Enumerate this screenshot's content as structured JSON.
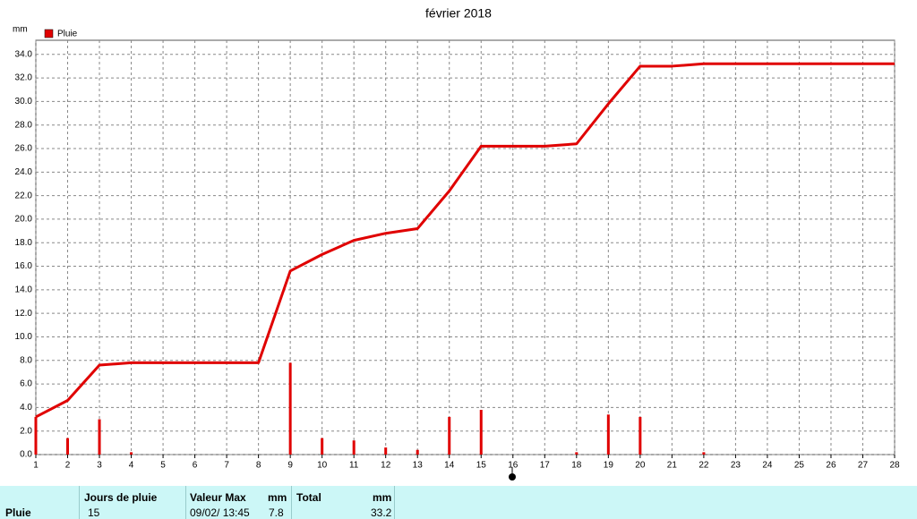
{
  "chart_data": {
    "type": "bar-line",
    "title": "février 2018",
    "y_unit": "mm",
    "x": [
      1,
      2,
      3,
      4,
      5,
      6,
      7,
      8,
      9,
      10,
      11,
      12,
      13,
      14,
      15,
      16,
      17,
      18,
      19,
      20,
      21,
      22,
      23,
      24,
      25,
      26,
      27,
      28
    ],
    "xlim": [
      1,
      28
    ],
    "ylim": [
      0,
      35.2
    ],
    "yticks": [
      {
        "value": 0,
        "label": "0.0"
      },
      {
        "value": 2,
        "label": "2.0"
      },
      {
        "value": 4,
        "label": "4.0"
      },
      {
        "value": 6,
        "label": "6.0"
      },
      {
        "value": 8,
        "label": "8.0"
      },
      {
        "value": 10,
        "label": "10.0"
      },
      {
        "value": 12,
        "label": "12.0"
      },
      {
        "value": 14,
        "label": "14.0"
      },
      {
        "value": 16,
        "label": "16.0"
      },
      {
        "value": 18,
        "label": "18.0"
      },
      {
        "value": 20,
        "label": "20.0"
      },
      {
        "value": 22,
        "label": "22.0"
      },
      {
        "value": 24,
        "label": "24.0"
      },
      {
        "value": 26,
        "label": "26.0"
      },
      {
        "value": 28,
        "label": "28.0"
      },
      {
        "value": 30,
        "label": "30.0"
      },
      {
        "value": 32,
        "label": "32.0"
      },
      {
        "value": 34,
        "label": "34.0"
      }
    ],
    "grid": true,
    "series": [
      {
        "name": "Pluie",
        "type": "bar",
        "color": "#e00000",
        "values": [
          3.2,
          1.4,
          3.0,
          0.2,
          0,
          0,
          0,
          0,
          7.8,
          1.4,
          1.2,
          0.6,
          0.4,
          3.2,
          3.8,
          0,
          0,
          0.2,
          3.4,
          3.2,
          0,
          0.2,
          0,
          0,
          0,
          0,
          0,
          0
        ]
      },
      {
        "type": "line",
        "color": "#e00000",
        "values": [
          3.2,
          4.6,
          7.6,
          7.8,
          7.8,
          7.8,
          7.8,
          7.8,
          15.6,
          17.0,
          18.2,
          18.8,
          19.2,
          22.4,
          26.2,
          26.2,
          26.2,
          26.4,
          29.8,
          33.0,
          33.0,
          33.2,
          33.2,
          33.2,
          33.2,
          33.2,
          33.2,
          33.2
        ]
      }
    ]
  },
  "table": {
    "headers": [
      "Jours de pluie",
      "Valeur Max",
      "mm",
      "Total",
      "mm"
    ],
    "row": [
      "Pluie",
      "15",
      "09/02/ 13:45",
      "7.8",
      "33.2"
    ]
  }
}
